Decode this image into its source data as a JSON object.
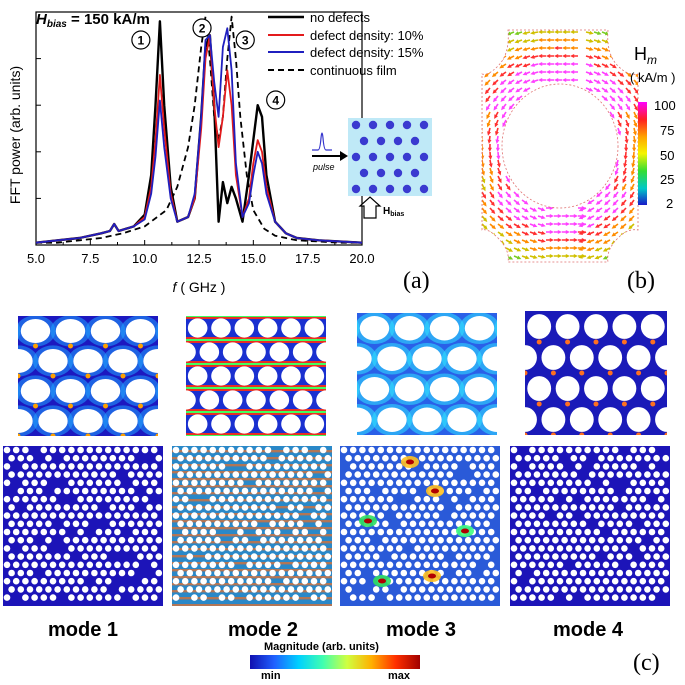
{
  "chart_data": {
    "type": "line",
    "title": "H_bias = 150 kA/m",
    "title_parts": {
      "symbol": "H",
      "subscript": "bias",
      "rest": " = 150 kA/m"
    },
    "xlabel": "f ( GHz )",
    "xlabel_parts": {
      "var": "f",
      "unit": " ( GHz )"
    },
    "ylabel": "FFT power (arb. units)",
    "xlim": [
      5.0,
      20.0
    ],
    "ylim": [
      0,
      1.0
    ],
    "x_ticks": [
      "5.0",
      "7.5",
      "10.0",
      "12.5",
      "15.0",
      "17.5",
      "20.0"
    ],
    "legend": [
      "no defects",
      "defect density: 10%",
      "defect density: 15%",
      "continuous film"
    ],
    "series": [
      {
        "name": "no defects",
        "color": "#000000",
        "dash": "solid",
        "x": [
          5.0,
          6.0,
          7.0,
          8.0,
          8.4,
          8.6,
          8.8,
          9.5,
          10.0,
          10.3,
          10.5,
          10.7,
          10.9,
          11.2,
          11.5,
          12.0,
          12.3,
          12.6,
          12.8,
          13.0,
          13.2,
          13.4,
          13.6,
          13.8,
          14.0,
          14.2,
          14.5,
          14.8,
          15.0,
          15.2,
          15.4,
          15.6,
          16.0,
          16.5,
          17.0,
          18.0,
          20.0
        ],
        "y": [
          0.01,
          0.02,
          0.03,
          0.05,
          0.06,
          0.09,
          0.06,
          0.08,
          0.13,
          0.3,
          0.6,
          0.96,
          0.6,
          0.25,
          0.1,
          0.12,
          0.2,
          0.55,
          0.85,
          0.9,
          0.6,
          0.1,
          0.27,
          0.18,
          0.25,
          0.2,
          0.1,
          0.3,
          0.45,
          0.6,
          0.55,
          0.3,
          0.1,
          0.05,
          0.03,
          0.02,
          0.01
        ]
      },
      {
        "name": "defect density: 10%",
        "color": "#e31a1c",
        "dash": "solid",
        "x": [
          5.0,
          6.0,
          7.0,
          8.0,
          8.4,
          8.6,
          8.8,
          9.5,
          10.0,
          10.3,
          10.5,
          10.7,
          10.9,
          11.2,
          11.5,
          12.0,
          12.3,
          12.6,
          12.8,
          13.0,
          13.2,
          13.4,
          13.6,
          13.8,
          14.0,
          14.2,
          14.5,
          14.8,
          15.0,
          15.2,
          15.4,
          15.6,
          16.0,
          16.5,
          17.0,
          18.0,
          20.0
        ],
        "y": [
          0.01,
          0.02,
          0.03,
          0.05,
          0.06,
          0.09,
          0.06,
          0.08,
          0.12,
          0.25,
          0.45,
          0.73,
          0.5,
          0.22,
          0.1,
          0.12,
          0.2,
          0.5,
          0.8,
          0.9,
          0.6,
          0.42,
          0.55,
          0.75,
          0.6,
          0.3,
          0.12,
          0.2,
          0.35,
          0.45,
          0.4,
          0.25,
          0.1,
          0.05,
          0.03,
          0.02,
          0.01
        ]
      },
      {
        "name": "defect density: 15%",
        "color": "#1f1fbf",
        "dash": "solid",
        "x": [
          5.0,
          6.0,
          7.0,
          8.0,
          8.4,
          8.6,
          8.8,
          9.5,
          10.0,
          10.3,
          10.5,
          10.7,
          10.9,
          11.2,
          11.5,
          12.0,
          12.3,
          12.6,
          12.8,
          13.0,
          13.2,
          13.4,
          13.6,
          13.8,
          14.0,
          14.2,
          14.5,
          14.8,
          15.0,
          15.2,
          15.4,
          15.6,
          16.0,
          16.5,
          17.0,
          18.0,
          20.0
        ],
        "y": [
          0.01,
          0.02,
          0.03,
          0.05,
          0.06,
          0.09,
          0.06,
          0.08,
          0.11,
          0.22,
          0.38,
          0.62,
          0.42,
          0.2,
          0.1,
          0.12,
          0.22,
          0.55,
          0.88,
          0.9,
          0.7,
          0.55,
          0.85,
          0.93,
          0.75,
          0.35,
          0.12,
          0.18,
          0.3,
          0.4,
          0.35,
          0.22,
          0.1,
          0.05,
          0.03,
          0.02,
          0.01
        ]
      },
      {
        "name": "continuous film",
        "color": "#000000",
        "dash": "dashed",
        "x": [
          5.0,
          6.0,
          7.0,
          8.0,
          9.0,
          10.0,
          11.0,
          11.5,
          12.0,
          12.3,
          12.6,
          12.8,
          13.0,
          13.2,
          13.4,
          13.6,
          13.8,
          14.0,
          14.2,
          14.4,
          14.7,
          15.0,
          15.5,
          16.0,
          17.0,
          18.0,
          19.0,
          20.0
        ],
        "y": [
          0.01,
          0.01,
          0.02,
          0.03,
          0.05,
          0.08,
          0.15,
          0.25,
          0.42,
          0.6,
          0.85,
          0.98,
          0.8,
          0.55,
          0.45,
          0.55,
          0.8,
          0.98,
          0.8,
          0.55,
          0.3,
          0.15,
          0.07,
          0.04,
          0.02,
          0.015,
          0.01,
          0.01
        ]
      }
    ],
    "peak_labels": [
      {
        "label": "1",
        "x": 10.7
      },
      {
        "label": "2",
        "x": 13.1
      },
      {
        "label": "3",
        "x": 13.8
      },
      {
        "label": "4",
        "x": 15.2
      }
    ]
  },
  "inset": {
    "pulse_label": "pulse",
    "field_label": "H",
    "field_sub": "bias"
  },
  "panel_b": {
    "colorbar_title": "H",
    "colorbar_title_sub": "m",
    "colorbar_unit": "( kA/m )",
    "colorbar_ticks": [
      "100",
      "75",
      "50",
      "25",
      "2"
    ],
    "colorbar_colors": [
      "#ff00ff",
      "#ff2020",
      "#ffa500",
      "#f5f500",
      "#33dd33",
      "#00c8c8",
      "#1818c8"
    ]
  },
  "panel_letters": {
    "a": "(a)",
    "b": "(b)",
    "c": "(c)"
  },
  "modes": [
    {
      "label": "mode 1"
    },
    {
      "label": "mode 2"
    },
    {
      "label": "mode 3"
    },
    {
      "label": "mode 4"
    }
  ],
  "magnitude_bar": {
    "title": "Magnitude (arb. units)",
    "min_label": "min",
    "max_label": "max",
    "colors": [
      "#1010b0",
      "#2060ff",
      "#00d0ff",
      "#40ffb0",
      "#d0ff40",
      "#ffb000",
      "#ff3000",
      "#a00000"
    ]
  }
}
